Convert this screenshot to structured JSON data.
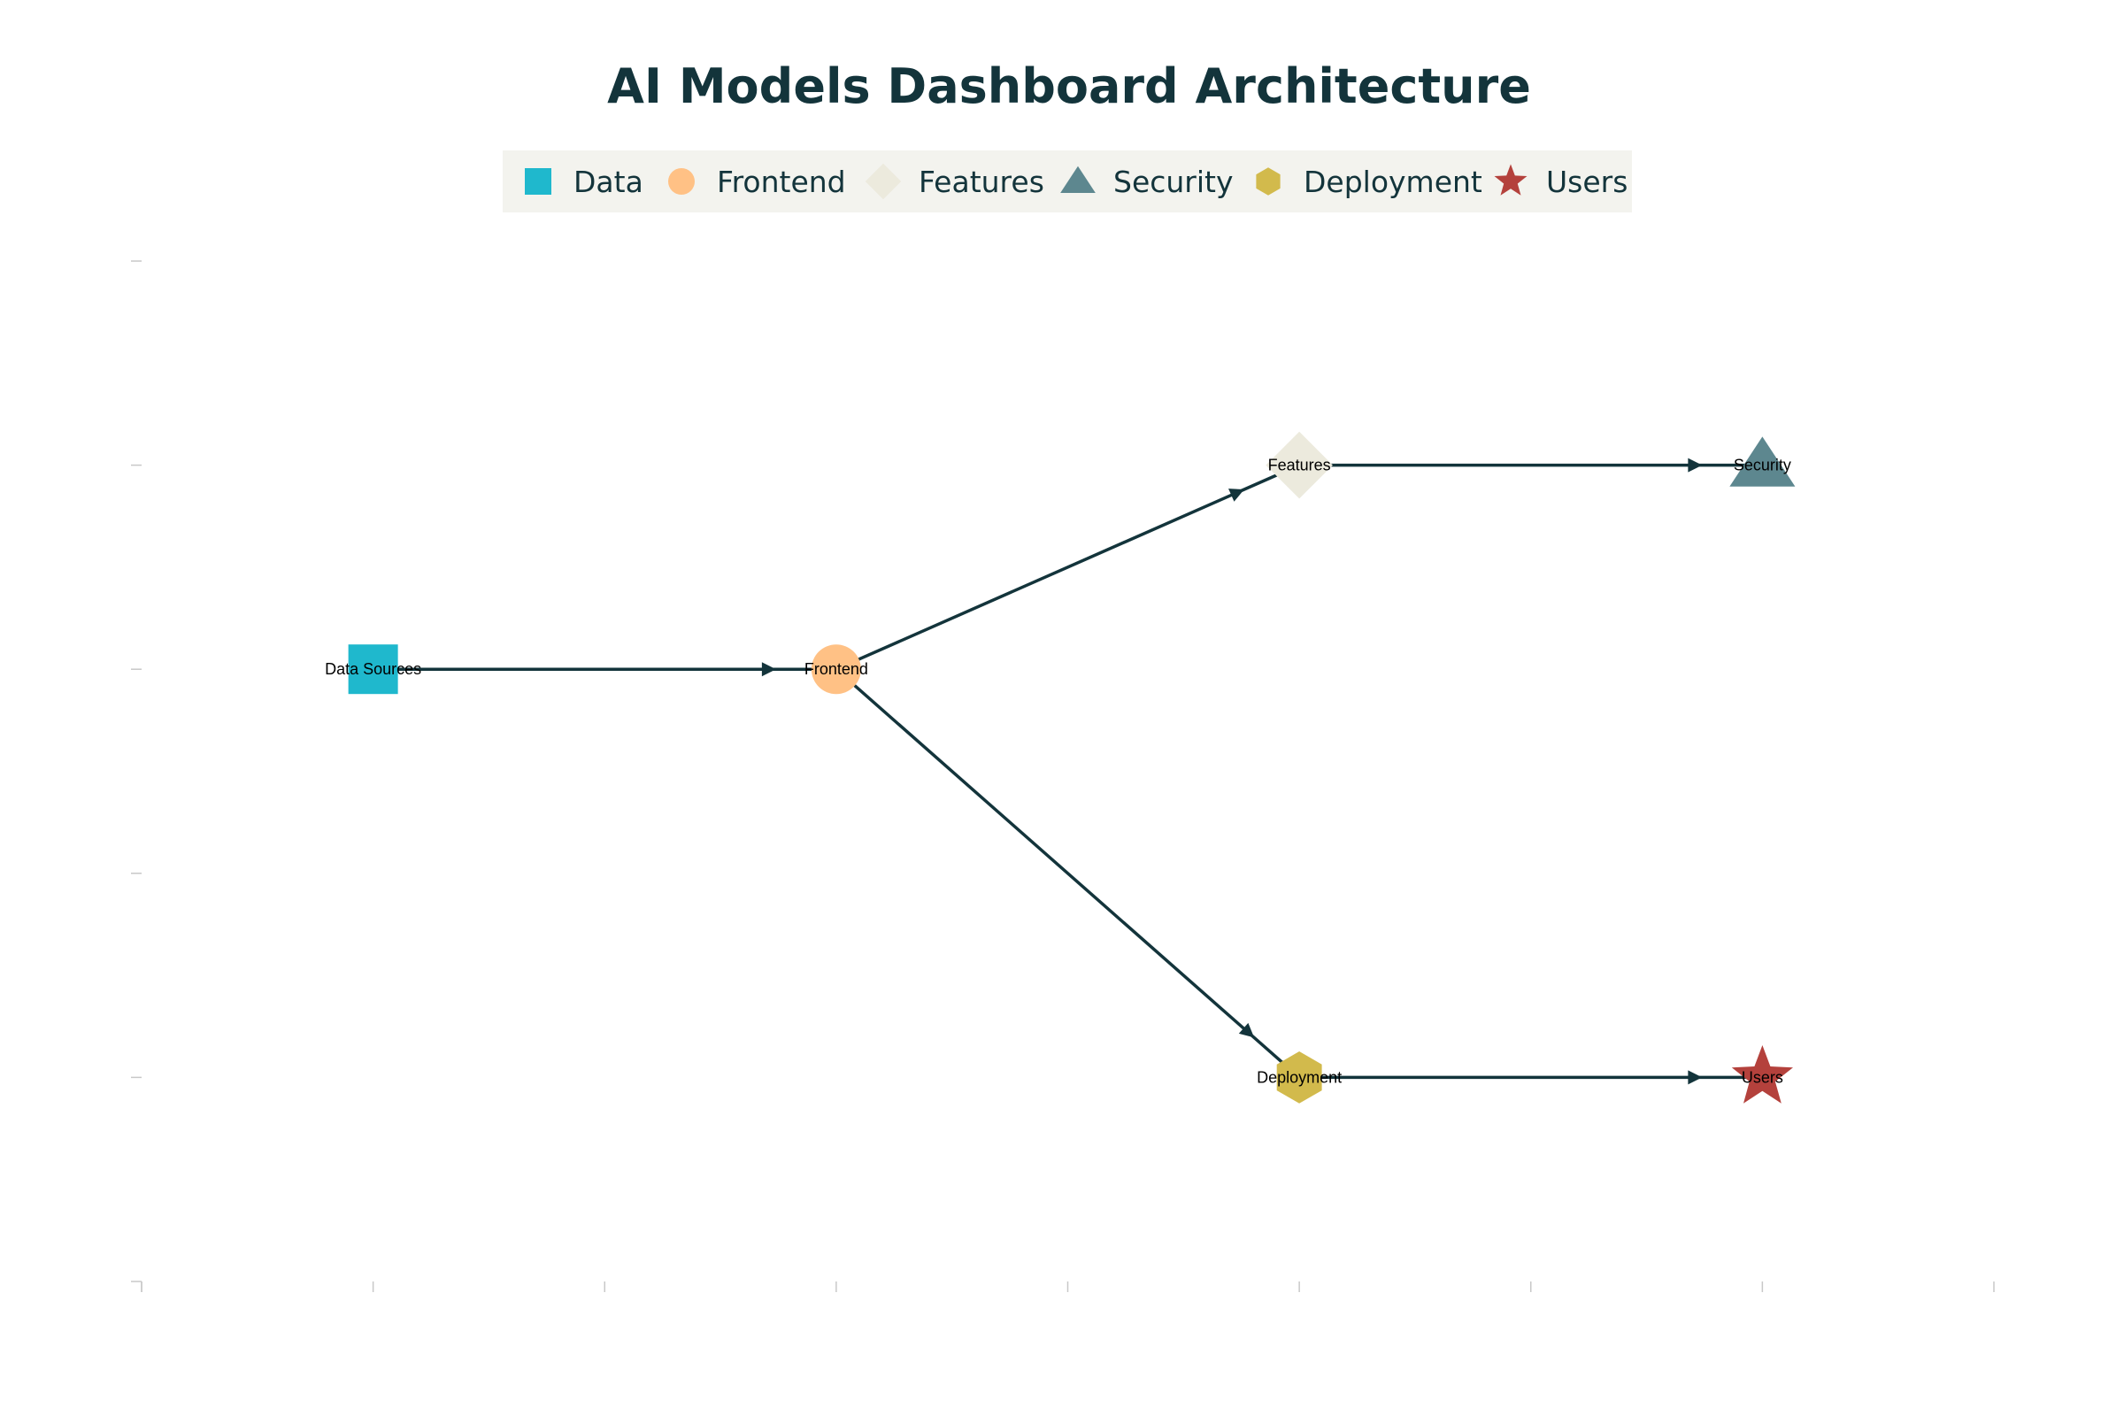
{
  "chart_data": {
    "type": "network",
    "title": "AI Models Dashboard Architecture",
    "xlim": [
      0,
      8
    ],
    "ylim": [
      0,
      5
    ],
    "legend": [
      {
        "name": "Data",
        "shape": "square",
        "color": "#1fb8cd"
      },
      {
        "name": "Frontend",
        "shape": "circle",
        "color": "#ffc185"
      },
      {
        "name": "Features",
        "shape": "diamond",
        "color": "#eceadd"
      },
      {
        "name": "Security",
        "shape": "triangle",
        "color": "#5d878f"
      },
      {
        "name": "Deployment",
        "shape": "hexagon",
        "color": "#d2ba4c"
      },
      {
        "name": "Users",
        "shape": "star",
        "color": "#b4413c"
      }
    ],
    "nodes": [
      {
        "id": "data",
        "label": "Data Sources",
        "group": "Data",
        "x": 1,
        "y": 3
      },
      {
        "id": "frontend",
        "label": "Frontend",
        "group": "Frontend",
        "x": 3,
        "y": 3
      },
      {
        "id": "features",
        "label": "Features",
        "group": "Features",
        "x": 5,
        "y": 4
      },
      {
        "id": "security",
        "label": "Security",
        "group": "Security",
        "x": 7,
        "y": 4
      },
      {
        "id": "deployment",
        "label": "Deployment",
        "group": "Deployment",
        "x": 5,
        "y": 1
      },
      {
        "id": "users",
        "label": "Users",
        "group": "Users",
        "x": 7,
        "y": 1
      }
    ],
    "edges": [
      {
        "from": "data",
        "to": "frontend"
      },
      {
        "from": "frontend",
        "to": "features"
      },
      {
        "from": "features",
        "to": "security"
      },
      {
        "from": "frontend",
        "to": "deployment"
      },
      {
        "from": "deployment",
        "to": "users"
      }
    ],
    "colors": {
      "edge": "#13343b",
      "title": "#13343b",
      "legend_bg": "#f3f3ee",
      "tick": "#c8c8c8"
    }
  }
}
